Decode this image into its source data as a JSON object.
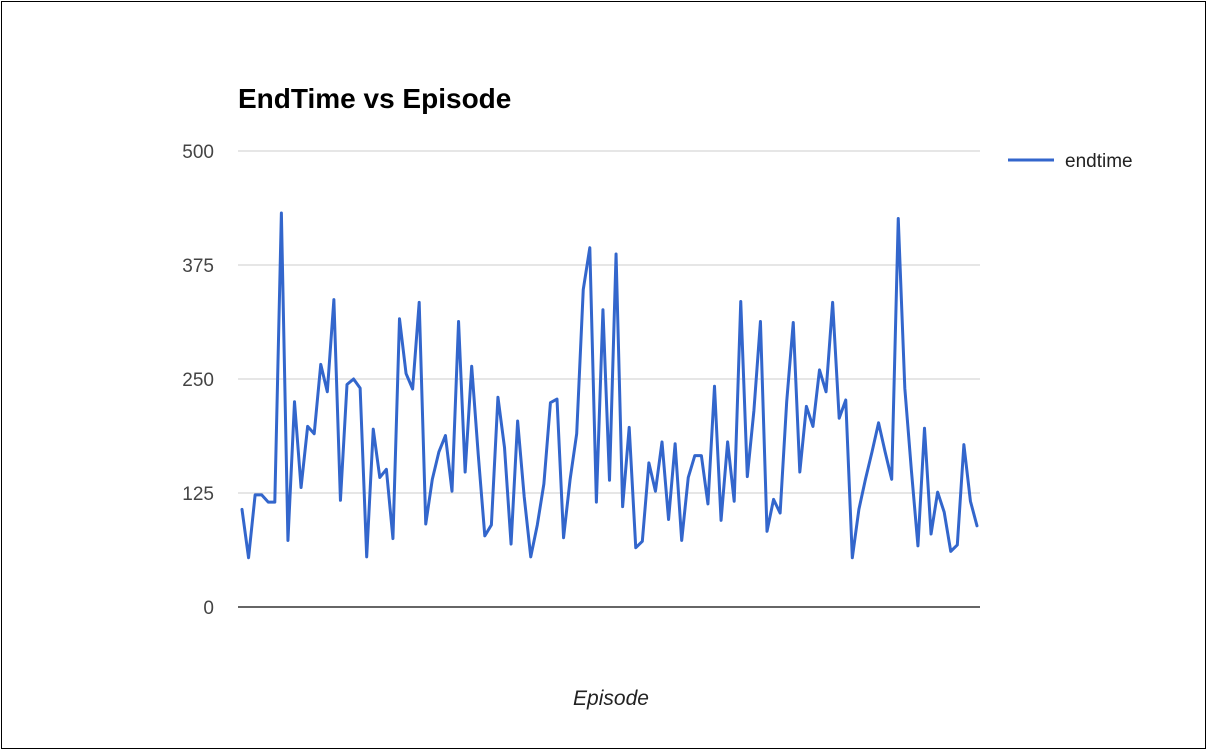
{
  "chart_data": {
    "type": "line",
    "title": "EndTime vs Episode",
    "xlabel": "Episode",
    "ylabel": "",
    "ylim": [
      0,
      500
    ],
    "yticks": [
      "0",
      "125",
      "250",
      "375",
      "500"
    ],
    "grid": true,
    "legend_position": "right",
    "series": [
      {
        "name": "endtime",
        "color": "#3366cc",
        "values": [
          107,
          54,
          123,
          123,
          115,
          115,
          432,
          73,
          225,
          131,
          198,
          190,
          266,
          236,
          337,
          117,
          244,
          250,
          240,
          55,
          195,
          142,
          151,
          75,
          316,
          256,
          239,
          334,
          91,
          140,
          170,
          188,
          127,
          313,
          148,
          264,
          167,
          78,
          90,
          230,
          175,
          69,
          204,
          121,
          55,
          90,
          135,
          224,
          228,
          76,
          140,
          190,
          348,
          394,
          115,
          326,
          139,
          387,
          110,
          197,
          65,
          72,
          158,
          127,
          181,
          96,
          179,
          73,
          142,
          166,
          166,
          113,
          242,
          95,
          181,
          116,
          335,
          143,
          215,
          313,
          83,
          118,
          103,
          225,
          312,
          148,
          220,
          198,
          260,
          236,
          334,
          207,
          227,
          54,
          107,
          140,
          170,
          202,
          170,
          140,
          426,
          240,
          150,
          67,
          196,
          80,
          126,
          104,
          61,
          68,
          178,
          116,
          89
        ]
      }
    ]
  }
}
